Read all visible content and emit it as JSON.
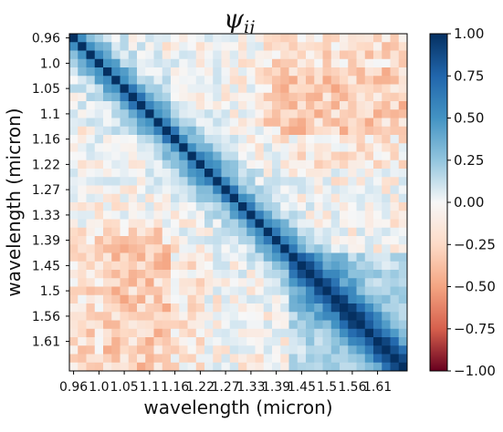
{
  "chart_data": {
    "type": "heatmap",
    "title": "ψ_ij",
    "title_main": "ψ",
    "title_sub": "ij",
    "xlabel": "wavelength (micron)",
    "ylabel": "wavelength (micron)",
    "tick_labels": [
      "0.96",
      "1.0",
      "1.05",
      "1.1",
      "1.16",
      "1.22",
      "1.27",
      "1.33",
      "1.39",
      "1.45",
      "1.5",
      "1.56",
      "1.61"
    ],
    "n_bins": 40,
    "block_split_bin": 26,
    "colorbar": {
      "ticks": [
        "1.00",
        "0.75",
        "0.50",
        "0.25",
        "0.00",
        "−0.25",
        "−0.50",
        "−0.75",
        "−1.00"
      ],
      "range": [
        -1.0,
        1.0
      ],
      "colormap": "RdBu"
    }
  }
}
